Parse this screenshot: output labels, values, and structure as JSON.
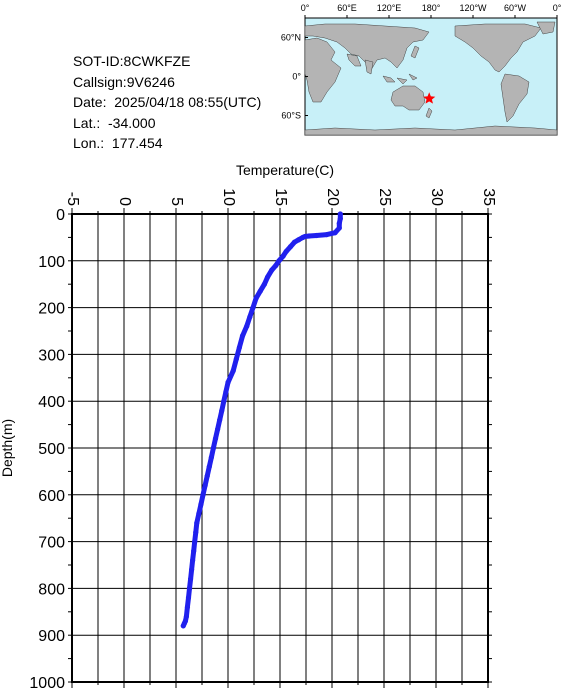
{
  "info": {
    "sot_id": "SOT-ID:8CWKFZE",
    "callsign": "Callsign:9V6246",
    "date": "Date:  2025/04/18 08:55(UTC)",
    "lat": "Lat.:  -34.000",
    "lon": "Lon.:  177.454"
  },
  "map": {
    "lon_ticks": [
      "0°",
      "60°E",
      "120°E",
      "180°",
      "120°W",
      "60°W",
      "0°"
    ],
    "lat_ticks": [
      "60°N",
      "0°",
      "60°S"
    ],
    "ocean_color": "#c8f0f8",
    "land_color": "#b4b4b4",
    "marker": {
      "lat": -34.0,
      "lon": 177.454,
      "color": "#ff0000",
      "shape": "star-icon"
    }
  },
  "chart_data": {
    "type": "line",
    "title": "",
    "xlabel": "Temperature(C)",
    "ylabel": "Depth(m)",
    "xlim": [
      -5,
      35
    ],
    "ylim": [
      1000,
      0
    ],
    "x_ticks": [
      "-5",
      "0",
      "5",
      "10",
      "15",
      "20",
      "25",
      "30",
      "35"
    ],
    "y_ticks": [
      "0",
      "100",
      "200",
      "300",
      "400",
      "500",
      "600",
      "700",
      "800",
      "900",
      "1000"
    ],
    "grid": true,
    "line_color": "#2020ee",
    "series": [
      {
        "temperature": [
          20.8,
          20.8,
          20.7,
          20.7,
          20.3,
          19.5,
          18.5,
          17.8,
          17.4,
          17.2,
          16.8,
          16.4,
          16.0,
          15.6,
          15.3,
          14.9,
          14.6,
          14.2,
          13.8,
          13.5,
          13.1,
          12.7,
          12.4,
          12.1,
          11.8,
          11.4,
          11.1,
          10.8,
          10.5,
          10.0,
          9.8,
          9.6,
          9.4,
          9.2,
          9.0,
          8.8,
          8.6,
          8.4,
          8.2,
          8.0,
          7.8,
          7.6,
          7.4,
          7.2,
          7.0,
          6.9,
          6.8,
          6.7,
          6.6,
          6.5,
          6.4,
          6.3,
          6.2,
          6.1,
          6.0,
          5.9,
          5.8,
          5.7
        ],
        "depth": [
          0,
          10,
          20,
          30,
          40,
          44,
          46,
          47,
          48,
          50,
          55,
          60,
          70,
          80,
          90,
          100,
          110,
          120,
          135,
          150,
          165,
          180,
          200,
          220,
          240,
          260,
          285,
          310,
          335,
          360,
          380,
          400,
          420,
          440,
          460,
          480,
          500,
          520,
          540,
          560,
          580,
          600,
          620,
          640,
          660,
          680,
          700,
          720,
          740,
          760,
          780,
          800,
          820,
          840,
          860,
          870,
          875,
          880
        ]
      }
    ]
  }
}
